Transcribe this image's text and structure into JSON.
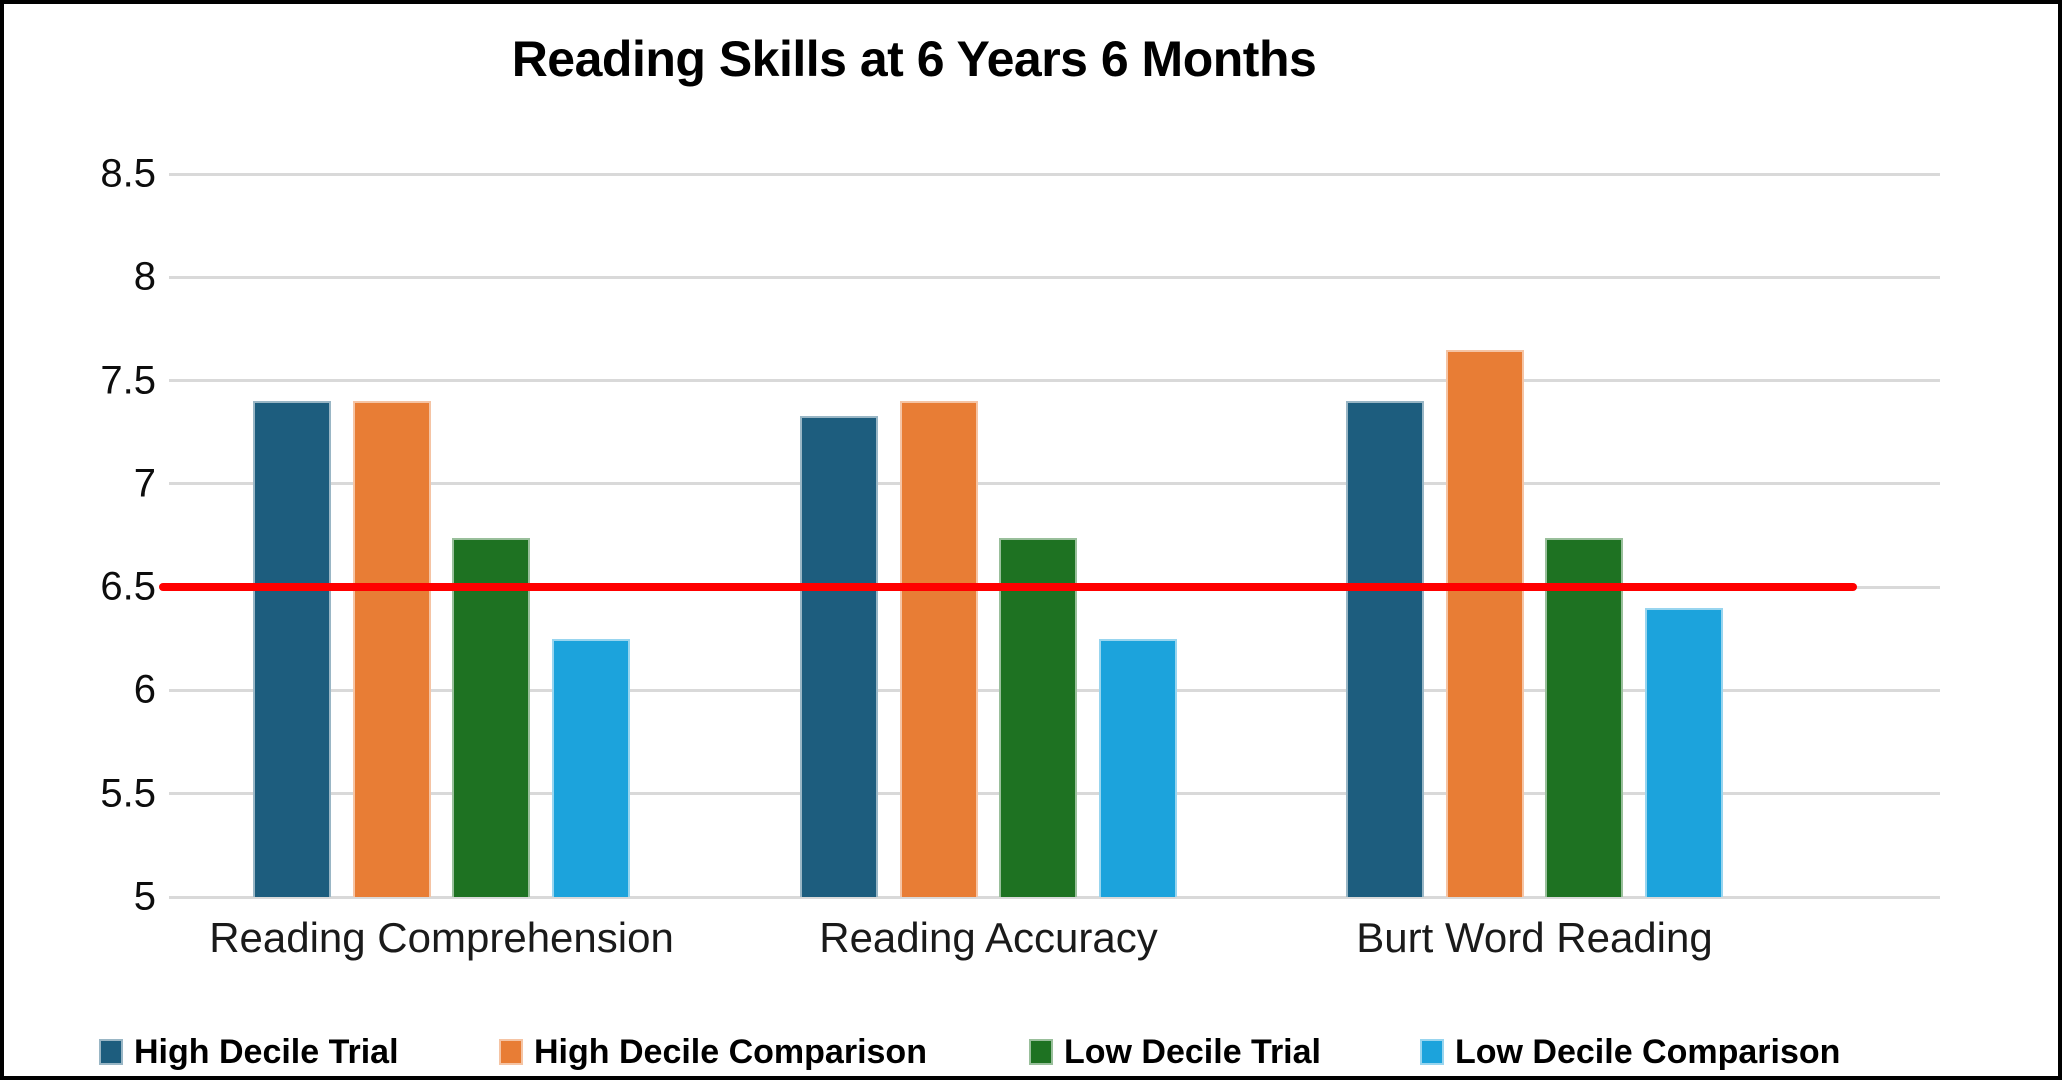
{
  "chart_data": {
    "type": "bar",
    "title": "Reading Skills at 6 Years 6 Months",
    "categories": [
      "Reading Comprehension",
      "Reading Accuracy",
      "Burt Word Reading"
    ],
    "series": [
      {
        "name": "High Decile Trial",
        "color": "#1d5d7e",
        "values": [
          7.4,
          7.33,
          7.4
        ]
      },
      {
        "name": "High Decile Comparison",
        "color": "#e87d35",
        "values": [
          7.4,
          7.4,
          7.65
        ]
      },
      {
        "name": "Low Decile Trial",
        "color": "#1e7222",
        "values": [
          6.74,
          6.74,
          6.74
        ]
      },
      {
        "name": "Low Decile Comparison",
        "color": "#1ca3dc",
        "values": [
          6.25,
          6.25,
          6.4
        ]
      }
    ],
    "ylim": [
      5,
      8.5
    ],
    "ytick_step": 0.5,
    "ytick_labels": [
      "8.5",
      "8",
      "7.5",
      "7",
      "6.5",
      "6",
      "5.5",
      "5"
    ],
    "reference_line": {
      "value": 6.5,
      "color": "#ff0000"
    },
    "grid": true,
    "gridline_color": "#d9d9d9",
    "legend_position": "bottom"
  }
}
